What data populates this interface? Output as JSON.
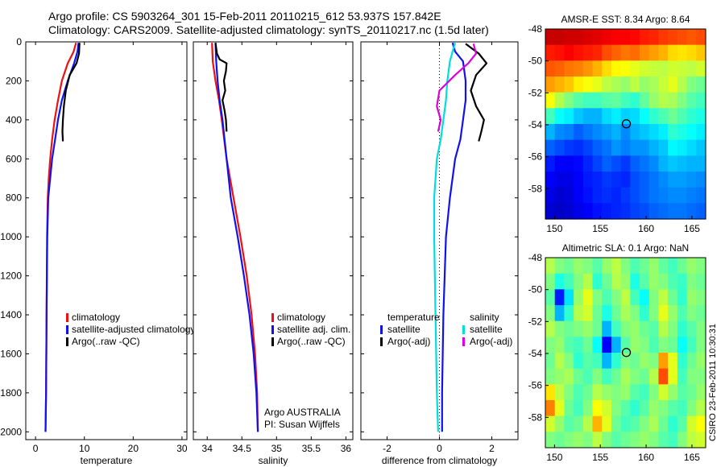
{
  "header": {
    "line1": "Argo profile: CS 5903264_301 15-Feb-2011 20110215_612 53.937S 157.842E",
    "line2": "Climatology: CARS2009. Satellite-adjusted climatology: synTS_20110217.nc (1.5d later)"
  },
  "side_label": "CSIRO 23-Feb-2011 10:30:31",
  "chart_data": [
    {
      "type": "line",
      "xlabel": "temperature",
      "ylabel": "",
      "xlim": [
        -2,
        31
      ],
      "ylim": [
        2040,
        0
      ],
      "y_reversed": true,
      "xticks": [
        0,
        10,
        20,
        30
      ],
      "yticks": [
        0,
        200,
        400,
        600,
        800,
        1000,
        1200,
        1400,
        1600,
        1800,
        2000
      ],
      "legend_items": [
        "climatology",
        "satellite-adjusted climatology",
        "Argo(..raw -QC)"
      ],
      "legend_colors": [
        "#ee1111",
        "#1111ee",
        "#000000"
      ],
      "series": [
        {
          "name": "climatology",
          "color": "#ee1111",
          "x": [
            8.3,
            7.8,
            6.6,
            5.4,
            4.6,
            3.9,
            3.4,
            3.0,
            2.7,
            2.5,
            2.35,
            2.25,
            2.15,
            2.05
          ],
          "y": [
            5,
            50,
            110,
            200,
            300,
            400,
            500,
            600,
            700,
            800,
            1000,
            1400,
            1800,
            2000
          ]
        },
        {
          "name": "satellite-adjusted climatology",
          "color": "#1111ee",
          "x": [
            8.8,
            8.6,
            7.9,
            6.6,
            5.4,
            4.6,
            4.0,
            3.4,
            3.0,
            2.6,
            2.4,
            2.25,
            2.15,
            2.05
          ],
          "y": [
            5,
            50,
            110,
            200,
            300,
            400,
            500,
            600,
            700,
            800,
            1000,
            1400,
            1800,
            2000
          ]
        },
        {
          "name": "Argo(..raw -QC)",
          "color": "#000000",
          "x": [
            9.0,
            8.9,
            8.4,
            7.0,
            6.2,
            5.8,
            5.6,
            5.5,
            5.6
          ],
          "y": [
            5,
            60,
            110,
            170,
            250,
            330,
            400,
            460,
            510
          ]
        }
      ]
    },
    {
      "type": "line",
      "xlabel": "salinity",
      "ylabel": "",
      "xlim": [
        33.8,
        36.1
      ],
      "ylim": [
        2040,
        0
      ],
      "y_reversed": true,
      "xticks": [
        34,
        34.5,
        35,
        35.5,
        36
      ],
      "legend_items": [
        "climatology",
        "satellite adj. clim.",
        "Argo(..raw -QC)"
      ],
      "legend_colors": [
        "#ee1111",
        "#1111ee",
        "#000000"
      ],
      "annotation": [
        "Argo AUSTRALIA",
        "PI: Susan Wijffels"
      ],
      "series": [
        {
          "name": "climatology",
          "color": "#ee1111",
          "x": [
            34.07,
            34.08,
            34.12,
            34.17,
            34.21,
            34.28,
            34.38,
            34.48,
            34.57,
            34.64,
            34.69,
            34.72,
            34.73
          ],
          "y": [
            5,
            100,
            200,
            300,
            400,
            600,
            800,
            1000,
            1200,
            1400,
            1600,
            1800,
            2000
          ]
        },
        {
          "name": "satellite adj. clim.",
          "color": "#1111ee",
          "x": [
            34.12,
            34.13,
            34.15,
            34.18,
            34.22,
            34.28,
            34.34,
            34.44,
            34.53,
            34.61,
            34.67,
            34.71,
            34.73
          ],
          "y": [
            5,
            100,
            200,
            300,
            400,
            600,
            800,
            1000,
            1200,
            1400,
            1600,
            1800,
            2000
          ]
        },
        {
          "name": "Argo(..raw -QC)",
          "color": "#000000",
          "x": [
            34.12,
            34.14,
            34.18,
            34.28,
            34.27,
            34.24,
            34.26,
            34.22,
            34.25,
            34.27,
            34.28
          ],
          "y": [
            5,
            60,
            90,
            110,
            150,
            200,
            250,
            300,
            350,
            400,
            460
          ]
        }
      ]
    },
    {
      "type": "line",
      "xlabel": "difference from climatology",
      "ylabel": "",
      "xlim": [
        -3,
        3
      ],
      "ylim": [
        2040,
        0
      ],
      "y_reversed": true,
      "xticks": [
        -2,
        0,
        2
      ],
      "legend_header": [
        "temperature",
        "salinity"
      ],
      "legend_items": [
        "satellite",
        "Argo(-adj)",
        "satellite",
        "Argo(-adj)"
      ],
      "legend_colors": [
        "#1111ee",
        "#000000",
        "#00dddd",
        "#dd00dd"
      ],
      "series": [
        {
          "name": "satellite",
          "group": "temperature",
          "color": "#1111ee",
          "x": [
            0.5,
            0.6,
            0.9,
            1.0,
            1.0,
            0.9,
            0.8,
            0.6,
            0.4,
            0.25,
            0.15,
            0.1,
            0.1
          ],
          "y": [
            5,
            50,
            100,
            200,
            300,
            400,
            500,
            600,
            800,
            1000,
            1400,
            1800,
            2000
          ]
        },
        {
          "name": "Argo(-adj)",
          "group": "temperature",
          "color": "#000000",
          "x": [
            1.0,
            1.5,
            1.8,
            1.4,
            1.2,
            1.4,
            1.7,
            1.6,
            1.5
          ],
          "y": [
            10,
            60,
            110,
            170,
            250,
            330,
            400,
            460,
            510
          ]
        },
        {
          "name": "satellite",
          "group": "salinity",
          "color": "#00dddd",
          "x": [
            0.6,
            0.5,
            0.4,
            0.3,
            0.25,
            0.15,
            0.05,
            -0.1,
            -0.2,
            -0.2,
            -0.15,
            -0.1,
            -0.05
          ],
          "y": [
            5,
            50,
            100,
            200,
            300,
            400,
            500,
            600,
            800,
            1000,
            1400,
            1800,
            2000
          ]
        },
        {
          "name": "Argo(-adj)",
          "group": "salinity",
          "color": "#dd00dd",
          "x": [
            1.3,
            1.4,
            1.1,
            0.6,
            0.0,
            -0.1,
            0.05,
            -0.05
          ],
          "y": [
            10,
            60,
            110,
            170,
            250,
            330,
            400,
            460
          ]
        }
      ]
    },
    {
      "type": "heatmap",
      "title": "AMSR-E SST: 8.34 Argo: 8.64",
      "xlim": [
        149,
        166.5
      ],
      "ylim": [
        -59.9,
        -48
      ],
      "xticks": [
        150,
        155,
        160,
        165
      ],
      "yticks": [
        -48,
        -50,
        -52,
        -54,
        -56,
        -58
      ],
      "marker": {
        "lon": 157.842,
        "lat": -53.937
      },
      "palette": "jet",
      "values": [
        [
          0.93,
          0.93,
          0.92,
          0.92,
          0.91,
          0.9,
          0.89,
          0.88,
          0.88,
          0.87,
          0.85,
          0.84,
          0.82,
          0.81,
          0.8,
          0.79,
          0.8
        ],
        [
          0.85,
          0.86,
          0.88,
          0.86,
          0.85,
          0.84,
          0.8,
          0.78,
          0.76,
          0.77,
          0.74,
          0.72,
          0.7,
          0.66,
          0.65,
          0.66,
          0.68
        ],
        [
          0.79,
          0.78,
          0.76,
          0.75,
          0.73,
          0.7,
          0.66,
          0.63,
          0.62,
          0.6,
          0.58,
          0.57,
          0.56,
          0.58,
          0.57,
          0.56,
          0.58
        ],
        [
          0.72,
          0.7,
          0.68,
          0.64,
          0.62,
          0.6,
          0.56,
          0.54,
          0.52,
          0.56,
          0.52,
          0.54,
          0.57,
          0.6,
          0.55,
          0.5,
          0.48
        ],
        [
          0.62,
          0.55,
          0.5,
          0.46,
          0.44,
          0.44,
          0.46,
          0.47,
          0.44,
          0.42,
          0.47,
          0.52,
          0.55,
          0.54,
          0.5,
          0.46,
          0.44
        ],
        [
          0.44,
          0.38,
          0.36,
          0.32,
          0.3,
          0.3,
          0.34,
          0.36,
          0.33,
          0.34,
          0.38,
          0.42,
          0.45,
          0.48,
          0.45,
          0.42,
          0.4
        ],
        [
          0.3,
          0.26,
          0.25,
          0.22,
          0.24,
          0.26,
          0.28,
          0.3,
          0.26,
          0.3,
          0.32,
          0.34,
          0.36,
          0.42,
          0.4,
          0.38,
          0.36
        ],
        [
          0.22,
          0.2,
          0.18,
          0.17,
          0.19,
          0.22,
          0.24,
          0.27,
          0.25,
          0.27,
          0.27,
          0.3,
          0.32,
          0.37,
          0.36,
          0.34,
          0.32
        ],
        [
          0.15,
          0.12,
          0.12,
          0.13,
          0.16,
          0.19,
          0.22,
          0.2,
          0.18,
          0.22,
          0.24,
          0.26,
          0.3,
          0.32,
          0.31,
          0.3,
          0.3
        ],
        [
          0.12,
          0.1,
          0.1,
          0.12,
          0.15,
          0.16,
          0.18,
          0.17,
          0.16,
          0.2,
          0.22,
          0.24,
          0.26,
          0.28,
          0.28,
          0.27,
          0.26
        ],
        [
          0.1,
          0.08,
          0.09,
          0.12,
          0.14,
          0.16,
          0.17,
          0.16,
          0.18,
          0.2,
          0.22,
          0.24,
          0.25,
          0.26,
          0.26,
          0.25,
          0.24
        ],
        [
          0.08,
          0.07,
          0.08,
          0.1,
          0.12,
          0.14,
          0.15,
          0.16,
          0.17,
          0.19,
          0.2,
          0.22,
          0.23,
          0.24,
          0.24,
          0.23,
          0.22
        ]
      ]
    },
    {
      "type": "heatmap",
      "title": "Altimetric SLA: 0.1 Argo: NaN",
      "xlim": [
        149,
        166.5
      ],
      "ylim": [
        -59.9,
        -48
      ],
      "xticks": [
        150,
        155,
        160,
        165
      ],
      "yticks": [
        -48,
        -50,
        -52,
        -54,
        -56,
        -58
      ],
      "marker": {
        "lon": 157.842,
        "lat": -53.937
      },
      "palette": "jet",
      "values": [
        [
          0.55,
          0.5,
          0.48,
          0.52,
          0.5,
          0.46,
          0.52,
          0.56,
          0.5,
          0.45,
          0.48,
          0.52,
          0.47,
          0.44,
          0.48,
          0.52,
          0.5
        ],
        [
          0.5,
          0.4,
          0.44,
          0.5,
          0.55,
          0.42,
          0.48,
          0.55,
          0.52,
          0.4,
          0.46,
          0.52,
          0.5,
          0.45,
          0.43,
          0.5,
          0.48
        ],
        [
          0.46,
          0.15,
          0.35,
          0.52,
          0.6,
          0.5,
          0.45,
          0.5,
          0.56,
          0.44,
          0.38,
          0.5,
          0.56,
          0.48,
          0.42,
          0.52,
          0.5
        ],
        [
          0.5,
          0.3,
          0.42,
          0.55,
          0.58,
          0.48,
          0.4,
          0.48,
          0.54,
          0.5,
          0.42,
          0.5,
          0.6,
          0.52,
          0.45,
          0.5,
          0.48
        ],
        [
          0.55,
          0.5,
          0.48,
          0.5,
          0.52,
          0.48,
          0.3,
          0.44,
          0.5,
          0.52,
          0.48,
          0.46,
          0.55,
          0.5,
          0.42,
          0.46,
          0.5
        ],
        [
          0.5,
          0.52,
          0.46,
          0.44,
          0.48,
          0.38,
          0.12,
          0.3,
          0.46,
          0.52,
          0.5,
          0.45,
          0.5,
          0.48,
          0.38,
          0.44,
          0.5
        ],
        [
          0.48,
          0.55,
          0.5,
          0.42,
          0.46,
          0.44,
          0.3,
          0.42,
          0.5,
          0.48,
          0.52,
          0.5,
          0.72,
          0.6,
          0.42,
          0.48,
          0.52
        ],
        [
          0.5,
          0.52,
          0.54,
          0.48,
          0.45,
          0.5,
          0.44,
          0.48,
          0.54,
          0.5,
          0.48,
          0.55,
          0.8,
          0.6,
          0.44,
          0.5,
          0.5
        ],
        [
          0.65,
          0.56,
          0.5,
          0.45,
          0.48,
          0.55,
          0.52,
          0.5,
          0.52,
          0.46,
          0.44,
          0.5,
          0.58,
          0.52,
          0.46,
          0.48,
          0.52
        ],
        [
          0.75,
          0.6,
          0.48,
          0.44,
          0.5,
          0.62,
          0.58,
          0.5,
          0.46,
          0.42,
          0.46,
          0.52,
          0.5,
          0.46,
          0.44,
          0.5,
          0.55
        ],
        [
          0.58,
          0.52,
          0.46,
          0.48,
          0.55,
          0.7,
          0.6,
          0.48,
          0.44,
          0.46,
          0.5,
          0.54,
          0.48,
          0.42,
          0.46,
          0.58,
          0.62
        ],
        [
          0.5,
          0.48,
          0.5,
          0.52,
          0.5,
          0.56,
          0.5,
          0.46,
          0.48,
          0.5,
          0.52,
          0.5,
          0.46,
          0.44,
          0.5,
          0.56,
          0.58
        ]
      ]
    }
  ]
}
